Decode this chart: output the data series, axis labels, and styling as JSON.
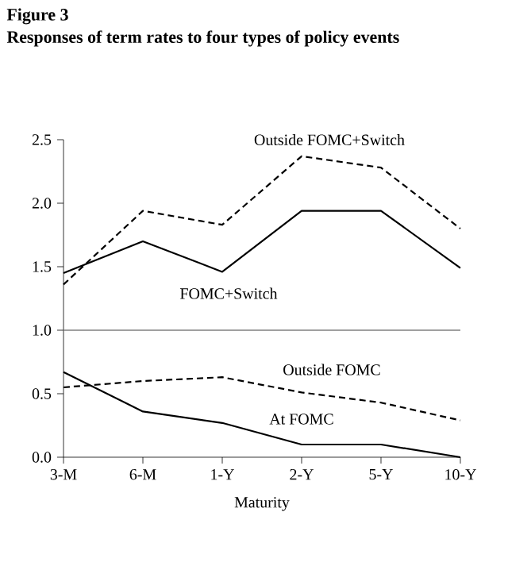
{
  "chart_data": {
    "type": "line",
    "title": "Figure 3",
    "subtitle": "Responses of term rates to four types of policy events",
    "xlabel": "Maturity",
    "categories": [
      "3-M",
      "6-M",
      "1-Y",
      "2-Y",
      "5-Y",
      "10-Y"
    ],
    "series": [
      {
        "name": "Outside FOMC+Switch",
        "color": "#000000",
        "line_style": "dashed",
        "values": [
          1.36,
          1.94,
          1.83,
          2.37,
          2.28,
          1.8
        ]
      },
      {
        "name": "FOMC+Switch",
        "color": "#000000",
        "line_style": "solid",
        "values": [
          1.45,
          1.7,
          1.46,
          1.94,
          1.94,
          1.49
        ]
      },
      {
        "name": "Outside FOMC",
        "color": "#000000",
        "line_style": "dashed",
        "values": [
          0.55,
          0.6,
          0.63,
          0.51,
          0.43,
          0.29
        ]
      },
      {
        "name": "At FOMC",
        "color": "#000000",
        "line_style": "solid",
        "values": [
          0.67,
          0.36,
          0.27,
          0.1,
          0.1,
          0.0
        ]
      }
    ],
    "ylim": [
      0,
      2.5
    ],
    "yticks": [
      {
        "value": 0,
        "label": "0.0"
      },
      {
        "value": 0.5,
        "label": "0.5"
      },
      {
        "value": 1,
        "label": "1.0"
      },
      {
        "value": 1.5,
        "label": "1.5"
      },
      {
        "value": 2,
        "label": "2.0"
      },
      {
        "value": 2.5,
        "label": "2.5"
      }
    ],
    "ref_lines": [
      {
        "axis": "y",
        "value": 1,
        "color": "#808080"
      }
    ],
    "grid": false,
    "legend": false,
    "marker": "none"
  }
}
